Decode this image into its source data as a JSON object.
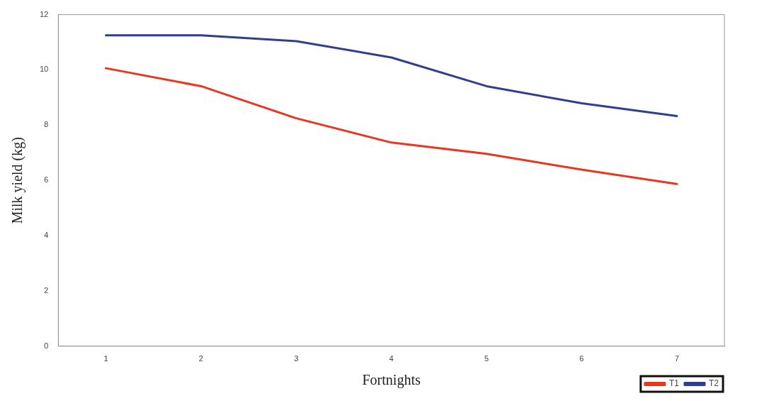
{
  "chart_data": {
    "type": "line",
    "xlabel": "Fortnights",
    "ylabel": "Milk yield (kg)",
    "categories": [
      "1",
      "2",
      "3",
      "4",
      "5",
      "6",
      "7"
    ],
    "series": [
      {
        "name": "T1",
        "color": "#e8361f",
        "values": [
          10.06,
          9.41,
          8.25,
          7.37,
          6.96,
          6.39,
          5.87
        ]
      },
      {
        "name": "T2",
        "color": "#2f3f8f",
        "values": [
          11.25,
          11.25,
          11.04,
          10.45,
          9.41,
          8.79,
          8.33
        ]
      }
    ],
    "ylim": [
      0,
      12
    ],
    "yticks": [
      0,
      2,
      4,
      6,
      8,
      10,
      12
    ],
    "grid": false,
    "legend": "bottom right",
    "marker": "none",
    "line_style": "solid"
  }
}
